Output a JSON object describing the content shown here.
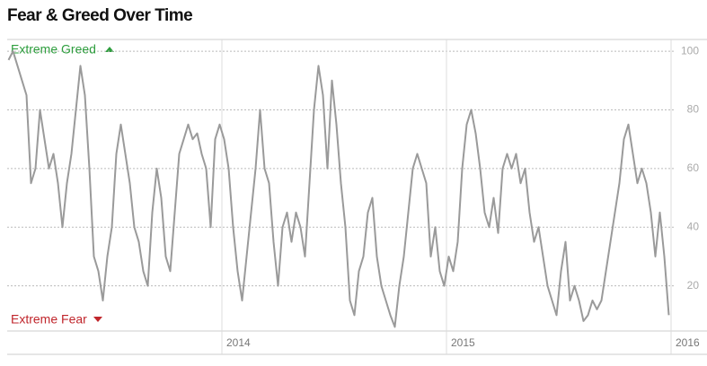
{
  "chart_data": {
    "type": "line",
    "title": "Fear & Greed Over Time",
    "annotations": [
      "Extreme Greed",
      "Extreme Fear"
    ],
    "x": [
      2013.05,
      2013.07,
      2013.09,
      2013.11,
      2013.13,
      2013.15,
      2013.17,
      2013.19,
      2013.21,
      2013.23,
      2013.25,
      2013.27,
      2013.29,
      2013.31,
      2013.33,
      2013.35,
      2013.37,
      2013.39,
      2013.41,
      2013.43,
      2013.45,
      2013.47,
      2013.49,
      2013.51,
      2013.53,
      2013.55,
      2013.57,
      2013.59,
      2013.61,
      2013.63,
      2013.65,
      2013.67,
      2013.69,
      2013.71,
      2013.73,
      2013.75,
      2013.77,
      2013.79,
      2013.81,
      2013.83,
      2013.85,
      2013.87,
      2013.89,
      2013.91,
      2013.93,
      2013.95,
      2013.97,
      2013.99,
      2014.01,
      2014.03,
      2014.05,
      2014.07,
      2014.09,
      2014.11,
      2014.13,
      2014.15,
      2014.17,
      2014.19,
      2014.21,
      2014.23,
      2014.25,
      2014.27,
      2014.29,
      2014.31,
      2014.33,
      2014.35,
      2014.37,
      2014.39,
      2014.41,
      2014.43,
      2014.45,
      2014.47,
      2014.49,
      2014.51,
      2014.53,
      2014.55,
      2014.57,
      2014.59,
      2014.61,
      2014.63,
      2014.65,
      2014.67,
      2014.69,
      2014.71,
      2014.73,
      2014.75,
      2014.77,
      2014.79,
      2014.81,
      2014.83,
      2014.85,
      2014.87,
      2014.89,
      2014.91,
      2014.93,
      2014.95,
      2014.97,
      2014.99,
      2015.01,
      2015.03,
      2015.05,
      2015.07,
      2015.09,
      2015.11,
      2015.13,
      2015.15,
      2015.17,
      2015.19,
      2015.21,
      2015.23,
      2015.25,
      2015.27,
      2015.29,
      2015.31,
      2015.33,
      2015.35,
      2015.37,
      2015.39,
      2015.41,
      2015.43,
      2015.45,
      2015.47,
      2015.49,
      2015.51,
      2015.53,
      2015.55,
      2015.57,
      2015.59,
      2015.61,
      2015.63,
      2015.65,
      2015.67,
      2015.69,
      2015.71,
      2015.73,
      2015.75,
      2015.77,
      2015.79,
      2015.81,
      2015.83,
      2015.85,
      2015.87,
      2015.89,
      2015.91,
      2015.93,
      2015.95,
      2015.97,
      2015.99
    ],
    "series": [
      {
        "color": "#9a9a9a",
        "values": [
          97,
          100,
          95,
          90,
          85,
          55,
          60,
          80,
          70,
          60,
          65,
          55,
          40,
          55,
          65,
          80,
          95,
          85,
          60,
          30,
          25,
          15,
          30,
          40,
          65,
          75,
          65,
          55,
          40,
          35,
          25,
          20,
          45,
          60,
          50,
          30,
          25,
          45,
          65,
          70,
          75,
          70,
          72,
          65,
          60,
          40,
          70,
          75,
          70,
          60,
          40,
          25,
          15,
          30,
          45,
          60,
          80,
          60,
          55,
          35,
          20,
          40,
          45,
          35,
          45,
          40,
          30,
          55,
          80,
          95,
          85,
          60,
          90,
          75,
          55,
          40,
          15,
          10,
          25,
          30,
          45,
          50,
          30,
          20,
          15,
          10,
          6,
          20,
          30,
          45,
          60,
          65,
          60,
          55,
          30,
          40,
          25,
          20,
          30,
          25,
          35,
          60,
          75,
          80,
          72,
          60,
          45,
          40,
          50,
          38,
          60,
          65,
          60,
          65,
          55,
          60,
          45,
          35,
          40,
          30,
          20,
          15,
          10,
          25,
          35,
          15,
          20,
          15,
          8,
          10,
          15,
          12,
          15,
          25,
          35,
          45,
          55,
          70,
          75,
          65,
          55,
          60,
          55,
          45,
          30,
          45,
          30,
          10
        ]
      }
    ],
    "xlim": [
      2013.044,
      2016.0
    ],
    "xticks": [
      2014,
      2015,
      2016
    ],
    "ylim": [
      4.6,
      104
    ],
    "yticks": [
      20,
      40,
      60,
      80,
      100
    ],
    "grid": true
  }
}
